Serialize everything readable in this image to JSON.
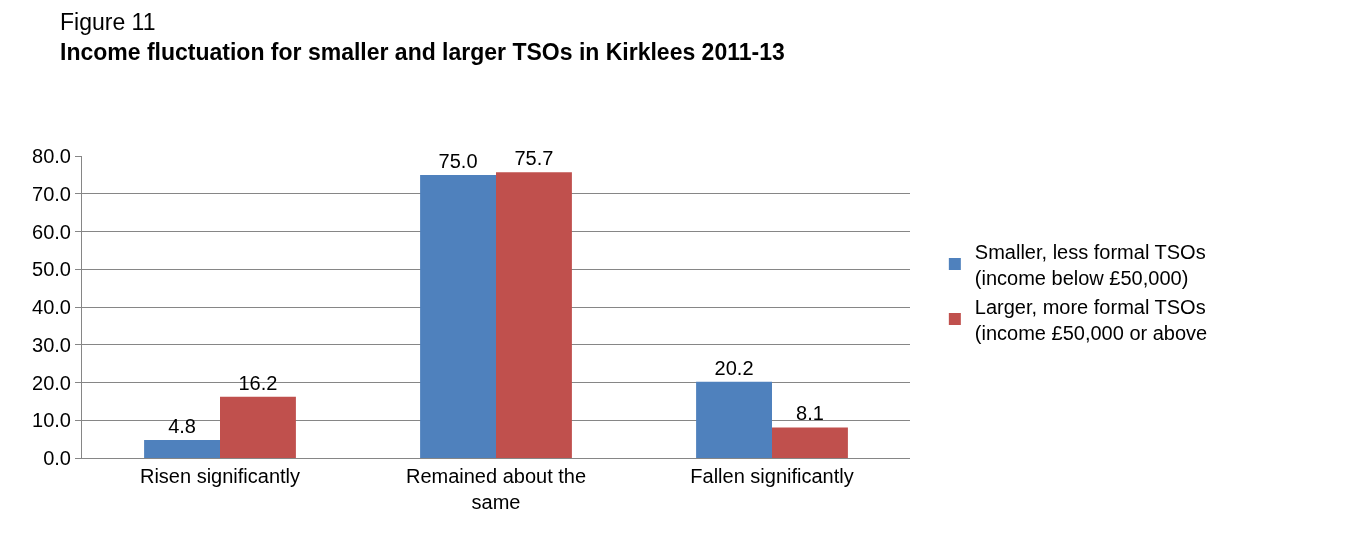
{
  "chart_data": {
    "type": "bar",
    "title": "Figure 11",
    "subtitle": "Income fluctuation for smaller and larger TSOs in Kirklees 2011-13",
    "categories": [
      "Risen significantly",
      "Remained about the same",
      "Fallen significantly"
    ],
    "series": [
      {
        "name": "Smaller, less formal TSOs (income below £50,000)",
        "color": "#4f81bd",
        "values": [
          4.8,
          75.0,
          20.2
        ],
        "value_labels": [
          "4.8",
          "75.0",
          "20.2"
        ]
      },
      {
        "name": "Larger, more formal TSOs (income £50,000 or above",
        "color": "#c0504d",
        "values": [
          16.2,
          75.7,
          8.1
        ],
        "value_labels": [
          "16.2",
          "75.7",
          "8.1"
        ]
      }
    ],
    "ylim": [
      0,
      80
    ],
    "yticks": [
      {
        "value": 0,
        "label": "0.0"
      },
      {
        "value": 10,
        "label": "10.0"
      },
      {
        "value": 20,
        "label": "20.0"
      },
      {
        "value": 30,
        "label": "30.0"
      },
      {
        "value": 40,
        "label": "40.0"
      },
      {
        "value": 50,
        "label": "50.0"
      },
      {
        "value": 60,
        "label": "60.0"
      },
      {
        "value": 70,
        "label": "70.0"
      },
      {
        "value": 80,
        "label": "80.0"
      }
    ],
    "grid": "y",
    "legend": "right"
  }
}
